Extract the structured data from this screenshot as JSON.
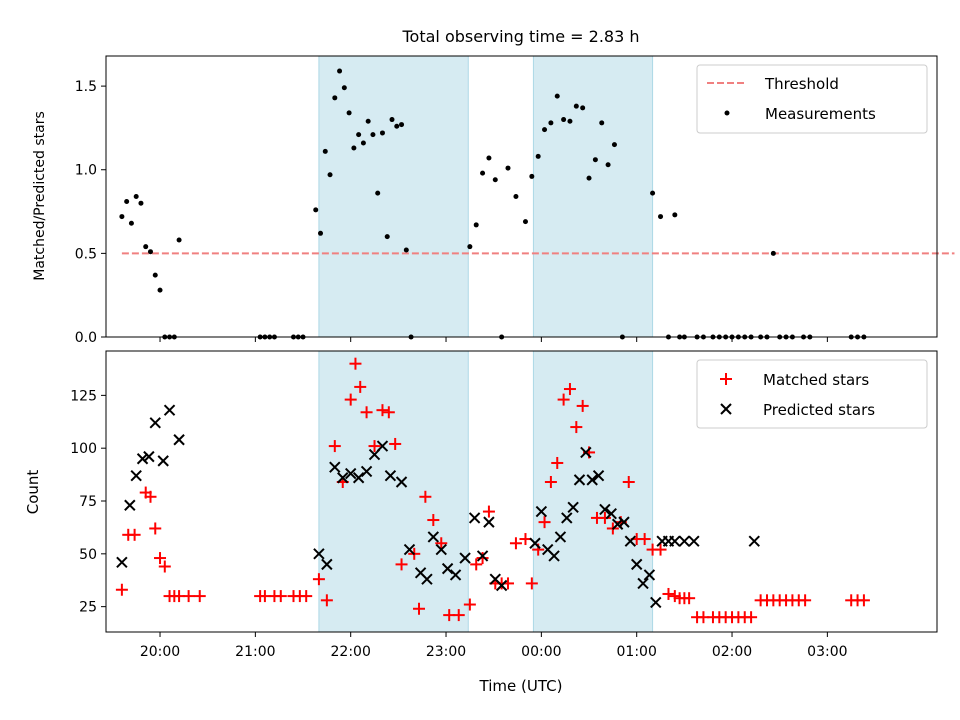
{
  "chart_data": [
    {
      "type": "scatter",
      "title": "Total observing time = 2.83 h",
      "ylabel": "Matched/Predicted stars",
      "xlabel": "",
      "ylim": [
        0,
        1.68
      ],
      "yticks": [
        "0.0",
        "0.5",
        "1.0",
        "1.5"
      ],
      "ytick_values": [
        0,
        0.5,
        1.0,
        1.5
      ],
      "xlim": [
        "19:26",
        "04:09"
      ],
      "highlight_spans": [
        [
          "21:40",
          "23:14"
        ],
        [
          "23:55",
          "01:10"
        ]
      ],
      "highlight_color": "#add8e6",
      "legend_position": "upper right",
      "series": [
        {
          "name": "Threshold",
          "kind": "dashed-line",
          "color": "#f08080",
          "x": [
            "19:36",
            "04:20"
          ],
          "y": [
            0.5,
            0.5
          ]
        },
        {
          "name": "Measurements",
          "kind": "points",
          "color": "#000000",
          "x": [
            "19:36",
            "19:39",
            "19:42",
            "19:45",
            "19:48",
            "19:51",
            "19:54",
            "19:57",
            "20:00",
            "20:03",
            "20:06",
            "20:09",
            "20:12",
            "21:03",
            "21:06",
            "21:09",
            "21:12",
            "21:24",
            "21:27",
            "21:30",
            "21:38",
            "21:41",
            "21:44",
            "21:47",
            "21:50",
            "21:53",
            "21:56",
            "21:59",
            "22:02",
            "22:05",
            "22:08",
            "22:11",
            "22:14",
            "22:17",
            "22:20",
            "22:23",
            "22:26",
            "22:29",
            "22:32",
            "22:35",
            "22:38",
            "23:15",
            "23:19",
            "23:23",
            "23:27",
            "23:31",
            "23:35",
            "23:39",
            "23:44",
            "23:50",
            "23:54",
            "23:58",
            "24:02",
            "24:06",
            "24:10",
            "24:14",
            "24:18",
            "24:22",
            "24:26",
            "24:30",
            "24:34",
            "24:38",
            "24:42",
            "24:46",
            "24:51",
            "25:10",
            "25:15",
            "25:20",
            "25:24",
            "25:27",
            "25:30",
            "25:38",
            "25:42",
            "25:48",
            "25:52",
            "25:56",
            "26:00",
            "26:04",
            "26:08",
            "26:12",
            "26:18",
            "26:22",
            "26:26",
            "26:30",
            "26:34",
            "26:38",
            "26:45",
            "26:49",
            "27:15",
            "27:19",
            "27:23"
          ],
          "y": [
            0.72,
            0.81,
            0.68,
            0.84,
            0.8,
            0.54,
            0.51,
            0.37,
            0.28,
            0,
            0,
            0,
            0.58,
            0,
            0,
            0,
            0,
            0,
            0,
            0,
            0.76,
            0.62,
            1.11,
            0.97,
            1.43,
            1.59,
            1.49,
            1.34,
            1.13,
            1.21,
            1.16,
            1.29,
            1.21,
            0.86,
            1.22,
            0.6,
            1.3,
            1.26,
            1.27,
            0.52,
            0,
            0.54,
            0.67,
            0.98,
            1.07,
            0.94,
            0,
            1.01,
            0.84,
            0.69,
            0.96,
            1.08,
            1.24,
            1.28,
            1.44,
            1.3,
            1.29,
            1.38,
            1.37,
            0.95,
            1.06,
            1.28,
            1.03,
            1.15,
            0,
            0.86,
            0.72,
            0,
            0.73,
            0,
            0,
            0,
            0,
            0,
            0,
            0,
            0,
            0,
            0,
            0,
            0,
            0,
            0.5,
            0,
            0,
            0,
            0,
            0,
            0,
            0,
            0
          ]
        }
      ]
    },
    {
      "type": "scatter",
      "title": "",
      "xlabel": "Time (UTC)",
      "ylabel": "Count",
      "ylim": [
        13,
        146
      ],
      "yticks": [
        "25",
        "50",
        "75",
        "100",
        "125"
      ],
      "ytick_values": [
        25,
        50,
        75,
        100,
        125
      ],
      "xlim": [
        "19:26",
        "04:09"
      ],
      "xticks": [
        "20:00",
        "21:00",
        "22:00",
        "23:00",
        "00:00",
        "01:00",
        "02:00",
        "03:00"
      ],
      "xtick_values": [
        "20:00",
        "21:00",
        "22:00",
        "23:00",
        "24:00",
        "25:00",
        "26:00",
        "27:00"
      ],
      "highlight_spans": [
        [
          "21:40",
          "23:14"
        ],
        [
          "23:55",
          "01:10"
        ]
      ],
      "highlight_color": "#add8e6",
      "legend_position": "upper right",
      "series": [
        {
          "name": "Matched stars",
          "kind": "plus",
          "color": "#ff0000",
          "x": [
            "19:36",
            "19:40",
            "19:44",
            "19:51",
            "19:54",
            "19:57",
            "20:00",
            "20:03",
            "20:06",
            "20:09",
            "20:12",
            "20:18",
            "20:25",
            "21:03",
            "21:06",
            "21:12",
            "21:16",
            "21:24",
            "21:28",
            "21:32",
            "21:40",
            "21:45",
            "21:50",
            "21:55",
            "22:00",
            "22:03",
            "22:06",
            "22:10",
            "22:15",
            "22:20",
            "22:24",
            "22:28",
            "22:32",
            "22:40",
            "22:43",
            "22:47",
            "22:52",
            "22:57",
            "23:02",
            "23:08",
            "23:15",
            "23:19",
            "23:23",
            "23:27",
            "23:31",
            "23:35",
            "23:39",
            "23:44",
            "23:50",
            "23:54",
            "23:58",
            "24:02",
            "24:06",
            "24:10",
            "24:14",
            "24:18",
            "24:22",
            "24:26",
            "24:30",
            "24:35",
            "24:40",
            "24:45",
            "24:50",
            "24:55",
            "25:00",
            "25:05",
            "25:10",
            "25:15",
            "25:20",
            "25:24",
            "25:27",
            "25:30",
            "25:33",
            "25:38",
            "25:42",
            "25:48",
            "25:52",
            "25:56",
            "26:00",
            "26:04",
            "26:08",
            "26:12",
            "26:18",
            "26:22",
            "26:26",
            "26:30",
            "26:34",
            "26:38",
            "26:42",
            "26:46",
            "27:15",
            "27:19",
            "27:23"
          ],
          "y": [
            33,
            59,
            59,
            79,
            77,
            62,
            48,
            44,
            30,
            30,
            30,
            30,
            30,
            30,
            30,
            30,
            30,
            30,
            30,
            30,
            38,
            28,
            101,
            84,
            123,
            140,
            129,
            117,
            101,
            118,
            117,
            102,
            45,
            50,
            24,
            77,
            66,
            55,
            21,
            21,
            26,
            45,
            48,
            70,
            36,
            36,
            36,
            55,
            57,
            36,
            52,
            65,
            84,
            93,
            123,
            128,
            110,
            120,
            98,
            67,
            67,
            62,
            65,
            84,
            57,
            57,
            52,
            52,
            31,
            30,
            29,
            29,
            29,
            20,
            20,
            20,
            20,
            20,
            20,
            20,
            20,
            20,
            28,
            28,
            28,
            28,
            28,
            28,
            28,
            28,
            28,
            28,
            28
          ]
        },
        {
          "name": "Predicted stars",
          "kind": "cross",
          "color": "#000000",
          "x": [
            "19:36",
            "19:41",
            "19:45",
            "19:49",
            "19:53",
            "19:57",
            "20:02",
            "20:06",
            "20:12",
            "21:40",
            "21:45",
            "21:50",
            "21:55",
            "22:00",
            "22:05",
            "22:10",
            "22:15",
            "22:20",
            "22:25",
            "22:32",
            "22:37",
            "22:44",
            "22:48",
            "22:52",
            "22:57",
            "23:01",
            "23:06",
            "23:12",
            "23:18",
            "23:23",
            "23:27",
            "23:31",
            "23:35",
            "23:56",
            "24:00",
            "24:04",
            "24:08",
            "24:12",
            "24:16",
            "24:20",
            "24:24",
            "24:28",
            "24:32",
            "24:36",
            "24:40",
            "24:44",
            "24:48",
            "24:52",
            "24:56",
            "25:00",
            "25:04",
            "25:08",
            "25:12",
            "25:16",
            "25:20",
            "25:24",
            "25:30",
            "25:36",
            "26:14"
          ],
          "y": [
            46,
            73,
            87,
            95,
            96,
            112,
            94,
            118,
            104,
            50,
            45,
            91,
            86,
            88,
            86,
            89,
            97,
            101,
            87,
            84,
            52,
            41,
            38,
            58,
            52,
            43,
            40,
            48,
            67,
            49,
            65,
            38,
            35,
            55,
            70,
            52,
            49,
            58,
            67,
            72,
            85,
            98,
            85,
            87,
            71,
            69,
            64,
            65,
            56,
            45,
            36,
            40,
            27,
            56,
            56,
            56,
            56,
            56,
            56
          ]
        }
      ]
    }
  ]
}
